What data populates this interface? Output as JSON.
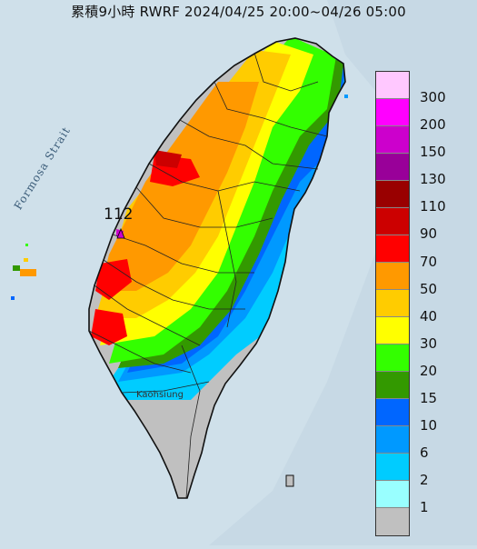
{
  "title": "累積9小時 RWRF 2024/04/25 20:00~04/26 05:00",
  "strait_label": "Formosa Strait",
  "max_value_label": "112",
  "city_label": "Kaohsiung",
  "legend": [
    {
      "label": "300",
      "color": "#ffc8ff"
    },
    {
      "label": "200",
      "color": "#ff00ff"
    },
    {
      "label": "150",
      "color": "#cc00cc"
    },
    {
      "label": "130",
      "color": "#990099"
    },
    {
      "label": "110",
      "color": "#990000"
    },
    {
      "label": "90",
      "color": "#cc0000"
    },
    {
      "label": "70",
      "color": "#ff0000"
    },
    {
      "label": "50",
      "color": "#ff9900"
    },
    {
      "label": "40",
      "color": "#ffcc00"
    },
    {
      "label": "30",
      "color": "#ffff00"
    },
    {
      "label": "20",
      "color": "#33ff00"
    },
    {
      "label": "15",
      "color": "#339900"
    },
    {
      "label": "10",
      "color": "#0066ff"
    },
    {
      "label": "6",
      "color": "#0099ff"
    },
    {
      "label": "2",
      "color": "#00ccff"
    },
    {
      "label": "1",
      "color": "#99ffff"
    },
    {
      "label": "",
      "color": "#c0c0c0"
    }
  ]
}
